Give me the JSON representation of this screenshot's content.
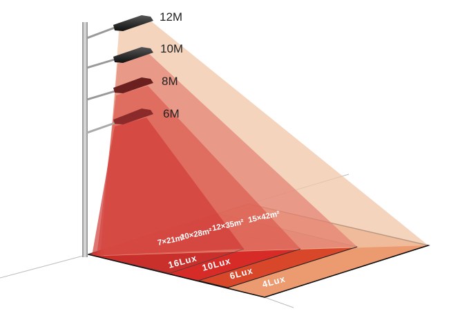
{
  "heights": [
    "12M",
    "10M",
    "8M",
    "6M"
  ],
  "areas": [
    "15×42m²",
    "12×35m²",
    "10×28m²",
    "7×21m²"
  ],
  "lux": [
    "4Lux",
    "6Lux",
    "10Lux",
    "16Lux"
  ],
  "colors": {
    "ground_4lux": "#ec9a70",
    "ground_6lux": "#d9472a",
    "ground_10lux": "#d62b27",
    "ground_16lux": "#c9302c",
    "beam_12m": "#f2c6a8",
    "beam_10m": "#e48070",
    "beam_8m": "#dc5b50",
    "beam_6m": "#d03a36"
  }
}
